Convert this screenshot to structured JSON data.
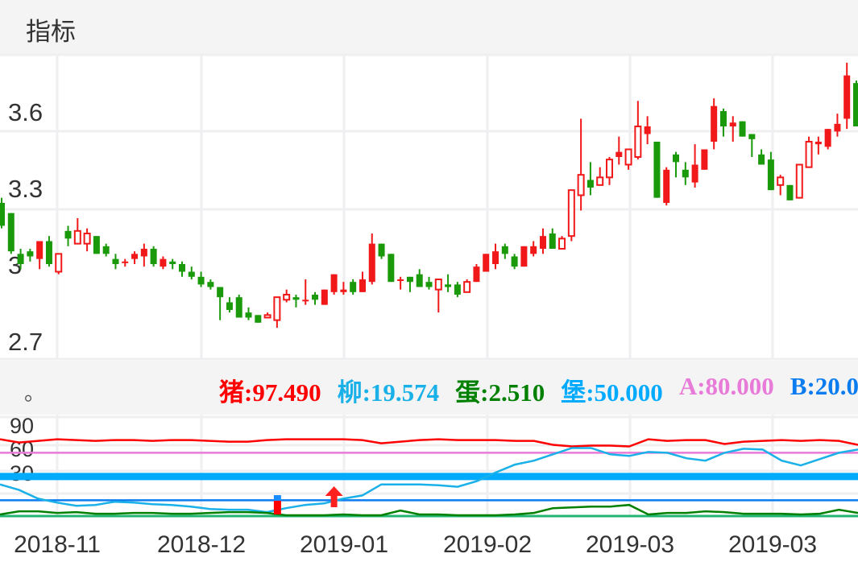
{
  "header": {
    "title": "指标"
  },
  "legend": {
    "dot": "。",
    "items": [
      {
        "label": "猪:97.490",
        "color": "#ff0000"
      },
      {
        "label": "柳:19.574",
        "color": "#1ab0e8"
      },
      {
        "label": "蛋:2.510",
        "color": "#008000"
      },
      {
        "label": "堡:50.000",
        "color": "#00aaff"
      },
      {
        "label": "A:80.000",
        "color": "#e87ad8"
      },
      {
        "label": "B:20.000",
        "color": "#0a7cf0"
      }
    ]
  },
  "chart_data": [
    {
      "type": "candlestick",
      "yticks": [
        "3.6",
        "3.3",
        "3",
        "2.7"
      ],
      "ytick_values": [
        3.6,
        3.3,
        3.0,
        2.7
      ],
      "xticks": [
        "2018-11",
        "2018-12",
        "2019-01",
        "2019-02",
        "2019-03",
        "2019-03"
      ],
      "up_color": "#f01818",
      "down_color": "#1a9a0a",
      "grid": true,
      "candles_ohlc_hollow": [
        [
          3.24,
          3.26,
          3.14,
          3.15,
          0
        ],
        [
          3.2,
          3.2,
          3.04,
          3.05,
          0
        ],
        [
          3.04,
          3.06,
          2.98,
          3.0,
          0
        ],
        [
          3.05,
          3.06,
          3.01,
          3.03,
          0
        ],
        [
          3.02,
          3.09,
          2.98,
          3.09,
          0
        ],
        [
          3.09,
          3.11,
          2.99,
          3.0,
          0
        ],
        [
          2.97,
          3.04,
          2.96,
          3.04,
          1
        ],
        [
          3.13,
          3.15,
          3.07,
          3.1,
          0
        ],
        [
          3.08,
          3.18,
          3.08,
          3.13,
          1
        ],
        [
          3.08,
          3.14,
          3.05,
          3.12,
          1
        ],
        [
          3.11,
          3.11,
          3.04,
          3.04,
          0
        ],
        [
          3.07,
          3.08,
          3.03,
          3.04,
          0
        ],
        [
          3.02,
          3.04,
          2.98,
          3.0,
          0
        ],
        [
          3.005,
          3.02,
          2.99,
          3.01,
          0
        ],
        [
          3.02,
          3.05,
          3.0,
          3.04,
          0
        ],
        [
          3.03,
          3.08,
          2.99,
          3.06,
          0
        ],
        [
          3.06,
          3.07,
          2.99,
          3.0,
          0
        ],
        [
          2.99,
          3.03,
          2.98,
          3.02,
          0
        ],
        [
          3.01,
          3.02,
          2.98,
          3.0,
          0
        ],
        [
          3.0,
          3.01,
          2.95,
          2.97,
          0
        ],
        [
          2.97,
          2.99,
          2.94,
          2.95,
          0
        ],
        [
          2.95,
          2.97,
          2.91,
          2.92,
          0
        ],
        [
          2.93,
          2.94,
          2.9,
          2.91,
          0
        ],
        [
          2.91,
          2.91,
          2.78,
          2.87,
          0
        ],
        [
          2.85,
          2.87,
          2.81,
          2.82,
          0
        ],
        [
          2.87,
          2.88,
          2.79,
          2.79,
          0
        ],
        [
          2.81,
          2.83,
          2.78,
          2.79,
          0
        ],
        [
          2.8,
          2.8,
          2.77,
          2.77,
          0
        ],
        [
          2.79,
          2.81,
          2.79,
          2.8,
          1
        ],
        [
          2.78,
          2.87,
          2.75,
          2.87,
          1
        ],
        [
          2.86,
          2.9,
          2.85,
          2.88,
          1
        ],
        [
          2.87,
          2.88,
          2.83,
          2.86,
          0
        ],
        [
          2.855,
          2.94,
          2.84,
          2.86,
          0
        ],
        [
          2.88,
          2.89,
          2.84,
          2.86,
          0
        ],
        [
          2.84,
          2.9,
          2.84,
          2.9,
          0
        ],
        [
          2.89,
          2.96,
          2.88,
          2.96,
          0
        ],
        [
          2.89,
          2.93,
          2.88,
          2.9,
          0
        ],
        [
          2.93,
          2.94,
          2.88,
          2.89,
          0
        ],
        [
          2.89,
          2.97,
          2.89,
          2.94,
          0
        ],
        [
          2.93,
          3.12,
          2.92,
          3.08,
          0
        ],
        [
          3.08,
          3.08,
          3.02,
          3.03,
          0
        ],
        [
          3.04,
          3.04,
          2.93,
          2.93,
          0
        ],
        [
          2.935,
          2.95,
          2.9,
          2.94,
          0
        ],
        [
          2.95,
          2.95,
          2.89,
          2.93,
          0
        ],
        [
          2.96,
          2.98,
          2.91,
          2.91,
          0
        ],
        [
          2.93,
          2.95,
          2.9,
          2.91,
          0
        ],
        [
          2.9,
          2.94,
          2.81,
          2.94,
          1
        ],
        [
          2.92,
          2.96,
          2.89,
          2.91,
          0
        ],
        [
          2.92,
          2.93,
          2.87,
          2.88,
          0
        ],
        [
          2.89,
          2.94,
          2.89,
          2.93,
          1
        ],
        [
          2.93,
          3.0,
          2.93,
          2.99,
          0
        ],
        [
          2.97,
          3.04,
          2.97,
          3.04,
          0
        ],
        [
          3.0,
          3.08,
          2.98,
          3.05,
          0
        ],
        [
          3.07,
          3.08,
          3.02,
          3.04,
          0
        ],
        [
          3.03,
          3.04,
          2.98,
          2.99,
          0
        ],
        [
          2.99,
          3.07,
          2.99,
          3.07,
          0
        ],
        [
          3.04,
          3.09,
          3.03,
          3.07,
          0
        ],
        [
          3.06,
          3.14,
          3.04,
          3.11,
          0
        ],
        [
          3.12,
          3.14,
          3.06,
          3.06,
          0
        ],
        [
          3.06,
          3.11,
          3.06,
          3.1,
          1
        ],
        [
          3.11,
          3.29,
          3.09,
          3.29,
          1
        ],
        [
          3.27,
          3.57,
          3.21,
          3.35,
          1
        ],
        [
          3.33,
          3.4,
          3.27,
          3.3,
          0
        ],
        [
          3.31,
          3.38,
          3.31,
          3.34,
          1
        ],
        [
          3.34,
          3.42,
          3.31,
          3.41,
          1
        ],
        [
          3.42,
          3.5,
          3.39,
          3.44,
          0
        ],
        [
          3.39,
          3.45,
          3.37,
          3.45,
          1
        ],
        [
          3.42,
          3.64,
          3.41,
          3.54,
          1
        ],
        [
          3.51,
          3.58,
          3.47,
          3.54,
          0
        ],
        [
          3.48,
          3.48,
          3.26,
          3.26,
          0
        ],
        [
          3.24,
          3.38,
          3.23,
          3.37,
          0
        ],
        [
          3.43,
          3.44,
          3.34,
          3.4,
          0
        ],
        [
          3.37,
          3.4,
          3.31,
          3.34,
          0
        ],
        [
          3.32,
          3.47,
          3.3,
          3.39,
          0
        ],
        [
          3.37,
          3.45,
          3.37,
          3.45,
          0
        ],
        [
          3.48,
          3.65,
          3.45,
          3.62,
          0
        ],
        [
          3.6,
          3.61,
          3.5,
          3.54,
          0
        ],
        [
          3.54,
          3.58,
          3.48,
          3.555,
          0
        ],
        [
          3.56,
          3.56,
          3.5,
          3.5,
          0
        ],
        [
          3.51,
          3.51,
          3.42,
          3.49,
          0
        ],
        [
          3.43,
          3.45,
          3.39,
          3.39,
          0
        ],
        [
          3.41,
          3.44,
          3.29,
          3.29,
          0
        ],
        [
          3.31,
          3.35,
          3.27,
          3.34,
          1
        ],
        [
          3.31,
          3.31,
          3.25,
          3.25,
          0
        ],
        [
          3.26,
          3.39,
          3.26,
          3.39,
          1
        ],
        [
          3.38,
          3.5,
          3.38,
          3.48,
          1
        ],
        [
          3.47,
          3.5,
          3.43,
          3.48,
          0
        ],
        [
          3.46,
          3.53,
          3.45,
          3.53,
          0
        ],
        [
          3.52,
          3.59,
          3.5,
          3.55,
          0
        ],
        [
          3.57,
          3.79,
          3.53,
          3.74,
          0
        ],
        [
          3.71,
          3.72,
          3.54,
          3.54,
          0
        ]
      ]
    },
    {
      "type": "line",
      "yticks": [
        "90",
        "60",
        "30"
      ],
      "ytick_values": [
        90,
        60,
        30
      ],
      "ylim": [
        0,
        100
      ],
      "series": [
        {
          "name": "猪",
          "color": "#ff0000",
          "values": [
            97,
            93,
            95,
            97,
            96,
            95,
            96,
            96,
            95,
            96,
            96,
            95,
            94,
            94,
            96,
            97,
            97,
            97,
            97,
            96,
            92,
            94,
            96,
            97,
            96,
            96,
            96,
            95,
            95,
            90,
            88,
            89,
            89,
            88,
            97,
            95,
            96,
            96,
            91,
            94,
            95,
            96,
            95,
            96,
            95,
            90
          ]
        },
        {
          "name": "柳",
          "color": "#1ab0e8",
          "values": [
            40,
            33,
            22,
            17,
            13,
            14,
            18,
            17,
            15,
            14,
            12,
            9,
            8,
            8,
            5,
            10,
            14,
            16,
            22,
            26,
            40,
            40,
            40,
            39,
            37,
            44,
            55,
            65,
            70,
            78,
            86,
            86,
            78,
            76,
            81,
            80,
            73,
            70,
            80,
            85,
            84,
            70,
            64,
            72,
            80,
            84
          ]
        },
        {
          "name": "蛋",
          "color": "#008000",
          "values": [
            2,
            6,
            6,
            4,
            5,
            3,
            3,
            4,
            4,
            3,
            3,
            4,
            5,
            5,
            4,
            1,
            1,
            1,
            2,
            1,
            1,
            7,
            2,
            2,
            1,
            1,
            1,
            2,
            4,
            10,
            11,
            12,
            12,
            14,
            2,
            4,
            4,
            6,
            5,
            3,
            3,
            3,
            2,
            3,
            8,
            4
          ]
        }
      ],
      "hlines": [
        {
          "name": "堡",
          "value": 50,
          "color": "#00aaff"
        },
        {
          "name": "A",
          "value": 80,
          "color": "#e87ad8"
        },
        {
          "name": "B",
          "value": 20,
          "color": "#0a7cf0"
        },
        {
          "name": "zero",
          "value": 0,
          "color": "#22b573"
        }
      ],
      "markers": [
        {
          "type": "signal-bar",
          "index": 29,
          "colors": [
            "#ff0000",
            "#1a8cff"
          ]
        },
        {
          "type": "up-arrow",
          "index": 35,
          "color": "#ff2020"
        }
      ]
    }
  ]
}
